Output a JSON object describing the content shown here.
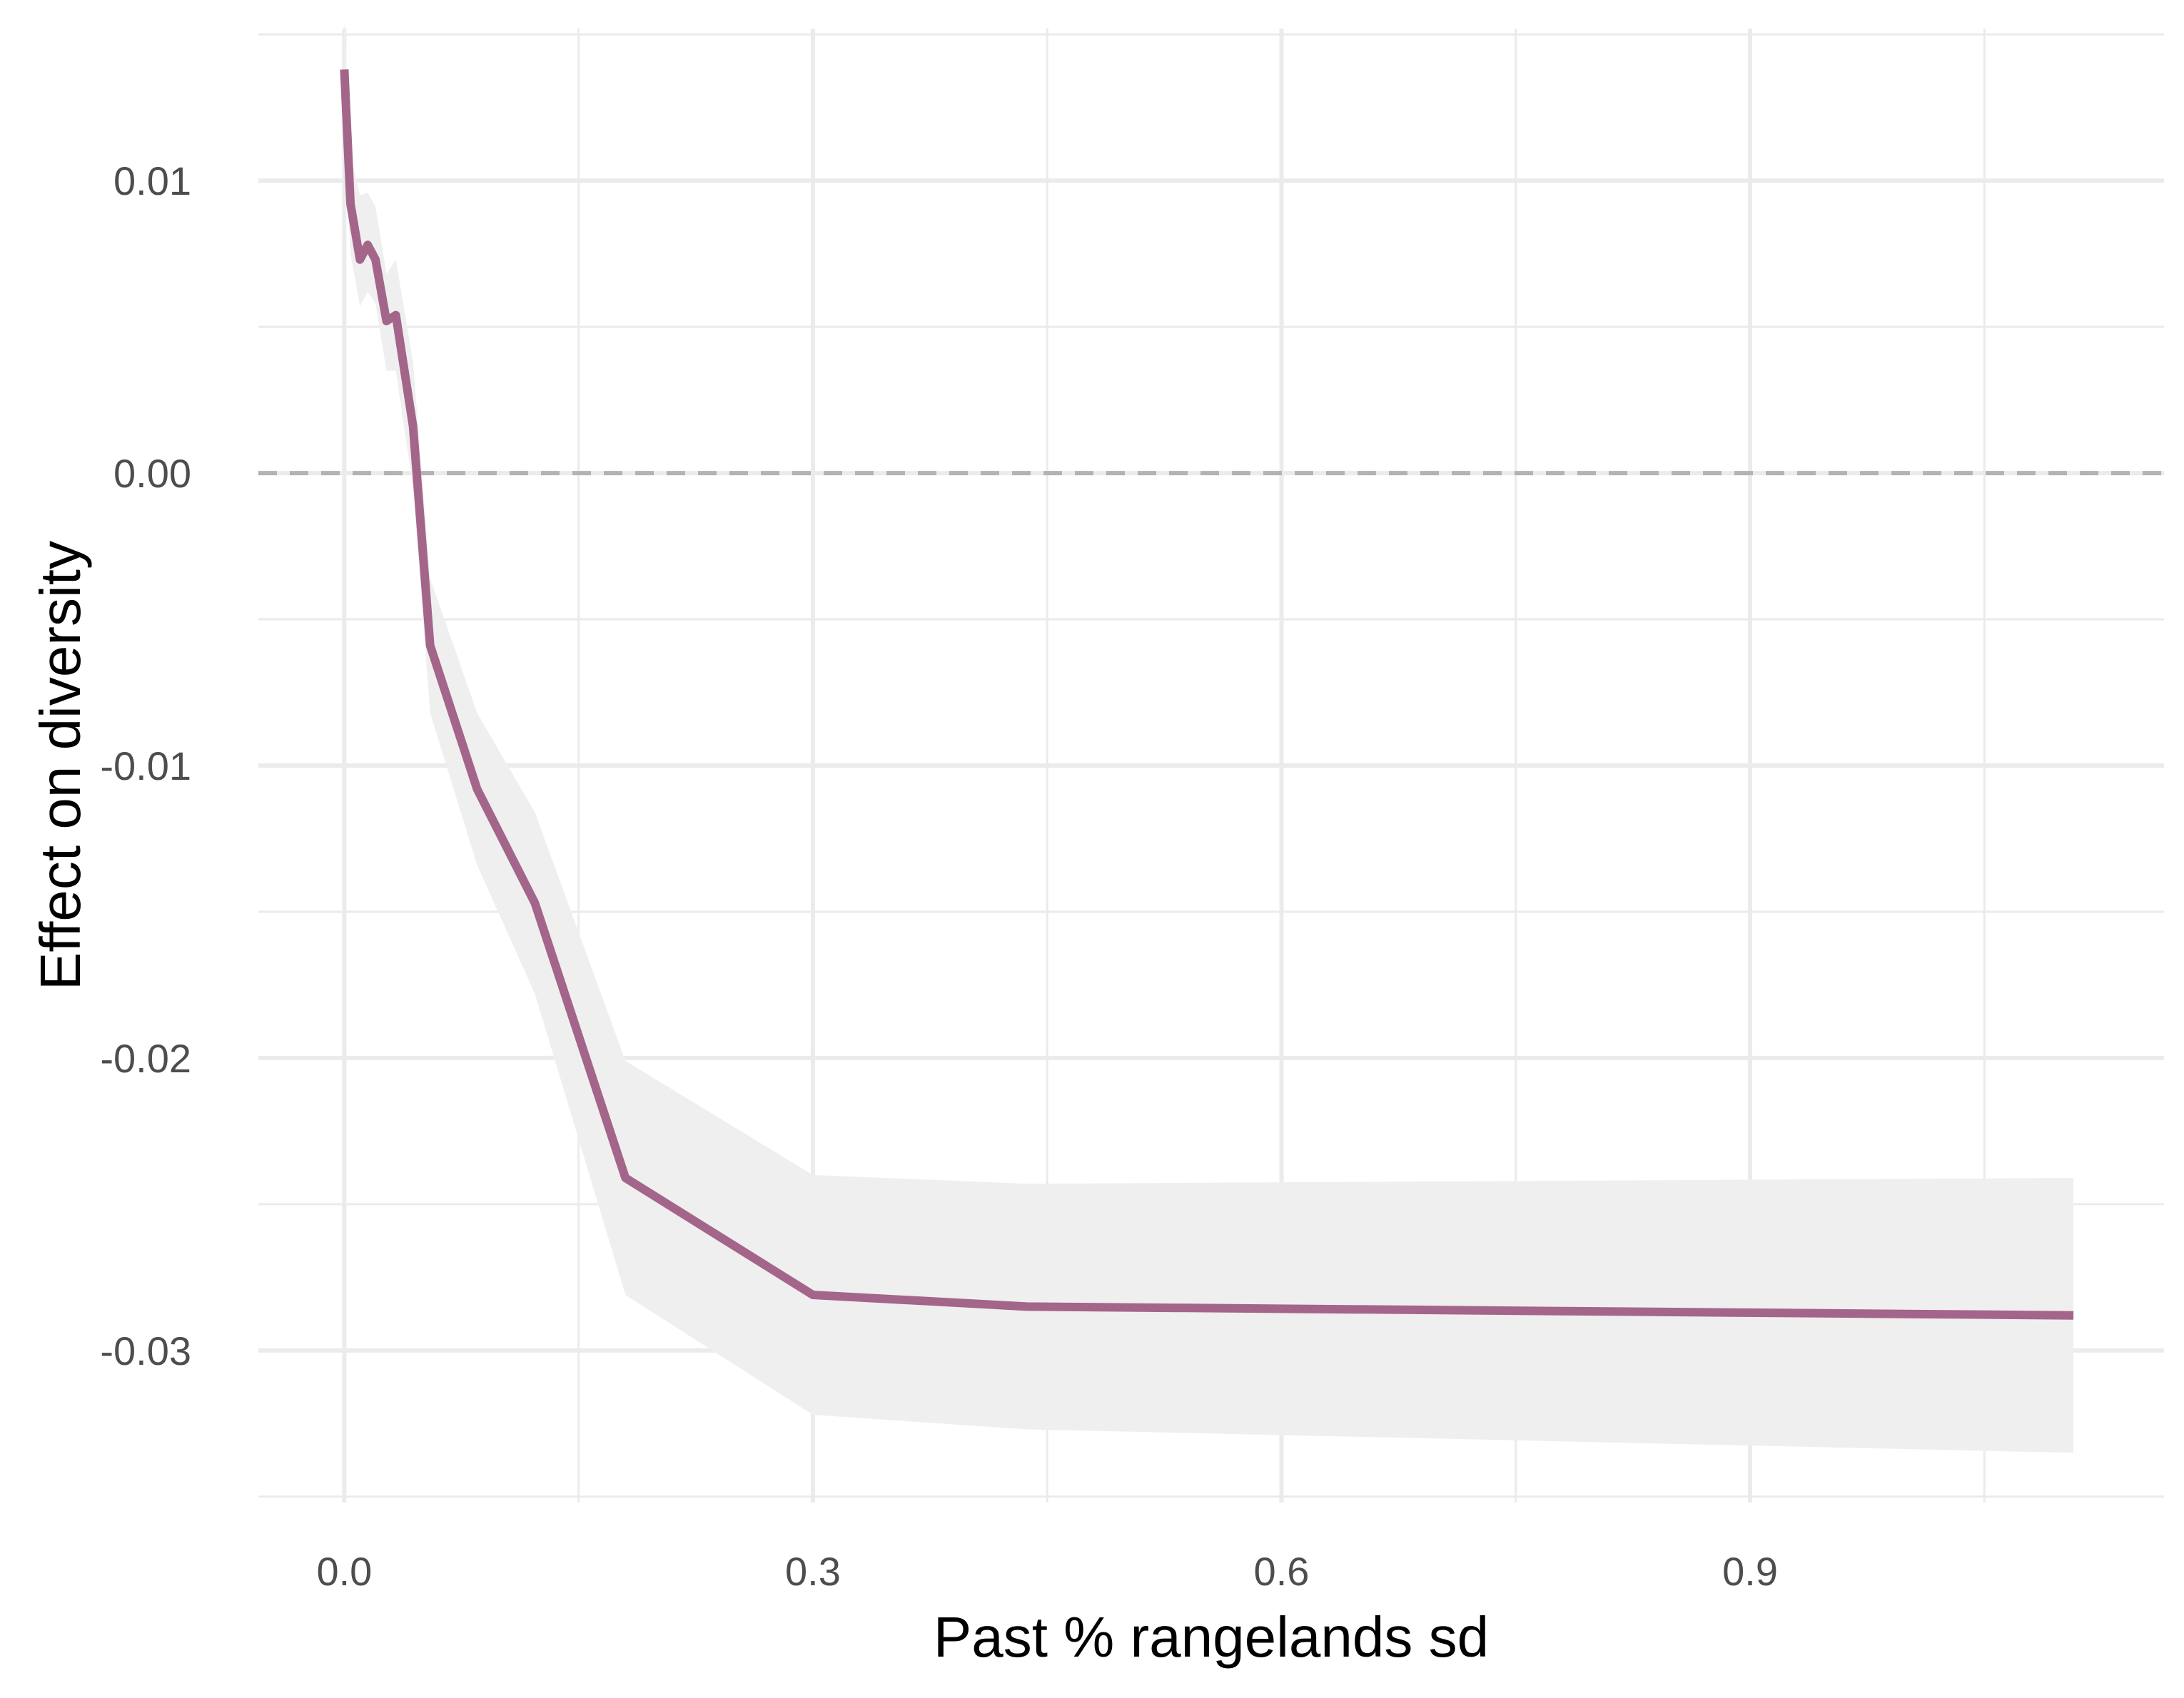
{
  "chart_data": {
    "type": "line",
    "title": "",
    "xlabel": "Past % rangelands sd",
    "ylabel": "Effect on diversity",
    "xlim": [
      -0.055,
      1.165
    ],
    "ylim": [
      -0.0352,
      0.0152
    ],
    "x_ticks": [
      0.0,
      0.3,
      0.6,
      0.9
    ],
    "x_tick_labels": [
      "0.0",
      "0.3",
      "0.6",
      "0.9"
    ],
    "x_minor_ticks": [
      0.15,
      0.45,
      0.75,
      1.05
    ],
    "y_ticks": [
      0.01,
      0.0,
      -0.01,
      -0.02,
      -0.03
    ],
    "y_tick_labels": [
      "0.01",
      "0.00",
      "-0.01",
      "-0.02",
      "-0.03"
    ],
    "y_minor_ticks": [
      0.015,
      0.005,
      -0.005,
      -0.015,
      -0.025,
      -0.035
    ],
    "grid": true,
    "reference_line": {
      "y": 0.0,
      "style": "dashed",
      "color": "#b3b3b3"
    },
    "series": [
      {
        "line_color": "#a4658a",
        "band_color": "#efefef",
        "x": [
          0.0,
          0.004,
          0.01,
          0.015,
          0.02,
          0.027,
          0.033,
          0.044,
          0.055,
          0.085,
          0.122,
          0.18,
          0.3,
          0.437,
          1.107
        ],
        "y": [
          0.0138,
          0.0092,
          0.0073,
          0.0078,
          0.0073,
          0.0052,
          0.0054,
          0.0016,
          -0.0059,
          -0.0108,
          -0.0147,
          -0.0241,
          -0.0281,
          -0.0285,
          -0.0288
        ],
        "lower": [
          0.0115,
          0.0075,
          0.0057,
          0.0062,
          0.0058,
          0.0035,
          0.0035,
          -0.0005,
          -0.0082,
          -0.0134,
          -0.0178,
          -0.0281,
          -0.0322,
          -0.0327,
          -0.0335
        ],
        "upper": [
          0.0155,
          0.0109,
          0.0095,
          0.0096,
          0.0091,
          0.0068,
          0.0073,
          0.0038,
          -0.0036,
          -0.0082,
          -0.0116,
          -0.0201,
          -0.024,
          -0.0243,
          -0.0241
        ]
      }
    ]
  }
}
